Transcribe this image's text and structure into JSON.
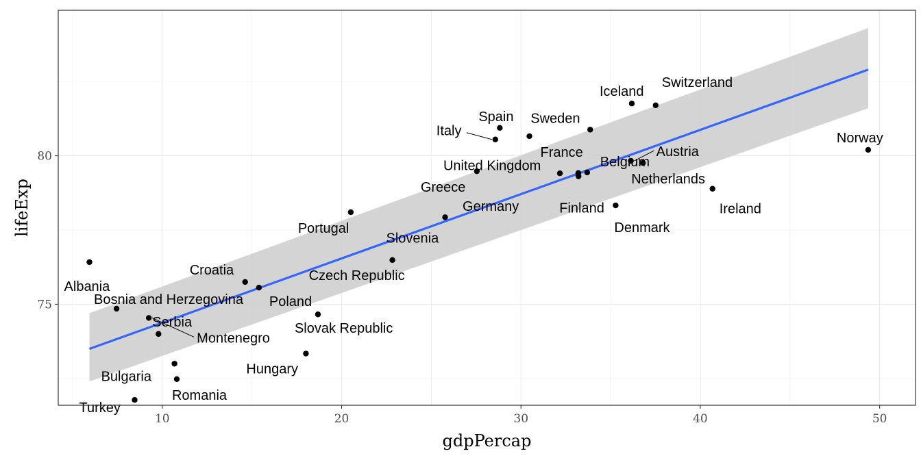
{
  "chart_data": {
    "type": "scatter",
    "title": "",
    "xlabel": "gdpPercap",
    "ylabel": "lifeExp",
    "xlim": [
      4.2,
      52.0
    ],
    "ylim": [
      71.6,
      84.9
    ],
    "x_ticks": [
      10,
      20,
      30,
      40,
      50
    ],
    "y_ticks": [
      75,
      80
    ],
    "grid": true,
    "legend": "none",
    "point_color": "#000000",
    "smooth": {
      "method": "linear regression",
      "line_color": "#3366ff",
      "band_color": "#cccccc",
      "x_range": [
        5.94,
        49.36
      ],
      "fit_at_min": 73.5,
      "fit_at_max": 82.9,
      "band_at_min": [
        72.4,
        74.7
      ],
      "band_at_max": [
        81.6,
        84.3
      ]
    },
    "points": [
      {
        "label": "Albania",
        "x": 5.94,
        "y": 76.42
      },
      {
        "label": "Bosnia and Herzegovina",
        "x": 7.45,
        "y": 74.85
      },
      {
        "label": "Montenegro",
        "x": 9.25,
        "y": 74.54
      },
      {
        "label": "Serbia",
        "x": 9.79,
        "y": 74.0
      },
      {
        "label": "Bulgaria",
        "x": 10.68,
        "y": 73.0
      },
      {
        "label": "Romania",
        "x": 10.81,
        "y": 72.48
      },
      {
        "label": "Turkey",
        "x": 8.46,
        "y": 71.78
      },
      {
        "label": "Croatia",
        "x": 14.62,
        "y": 75.75
      },
      {
        "label": "Poland",
        "x": 15.39,
        "y": 75.56
      },
      {
        "label": "Hungary",
        "x": 18.01,
        "y": 73.34
      },
      {
        "label": "Slovak Republic",
        "x": 18.68,
        "y": 74.66
      },
      {
        "label": "Portugal",
        "x": 20.51,
        "y": 78.1
      },
      {
        "label": "Czech Republic",
        "x": 22.83,
        "y": 76.49
      },
      {
        "label": "Slovenia",
        "x": 25.77,
        "y": 77.93
      },
      {
        "label": "Greece",
        "x": 27.54,
        "y": 79.48
      },
      {
        "label": "Italy",
        "x": 28.57,
        "y": 80.55
      },
      {
        "label": "Spain",
        "x": 28.82,
        "y": 80.94
      },
      {
        "label": "Sweden",
        "x": 33.86,
        "y": 80.88
      },
      {
        "label": "France",
        "x": 30.47,
        "y": 80.66
      },
      {
        "label": "United Kingdom",
        "x": 33.2,
        "y": 79.42
      },
      {
        "label": "Germany",
        "x": 32.17,
        "y": 79.41
      },
      {
        "label": "Finland",
        "x": 33.21,
        "y": 79.31
      },
      {
        "label": "Belgium",
        "x": 33.69,
        "y": 79.44
      },
      {
        "label": "Netherlands",
        "x": 36.8,
        "y": 79.76
      },
      {
        "label": "Austria",
        "x": 36.13,
        "y": 79.83
      },
      {
        "label": "Iceland",
        "x": 36.18,
        "y": 81.76
      },
      {
        "label": "Switzerland",
        "x": 37.51,
        "y": 81.7
      },
      {
        "label": "Denmark",
        "x": 35.28,
        "y": 78.33
      },
      {
        "label": "Ireland",
        "x": 40.68,
        "y": 78.89
      },
      {
        "label": "Norway",
        "x": 49.36,
        "y": 80.2
      }
    ]
  }
}
